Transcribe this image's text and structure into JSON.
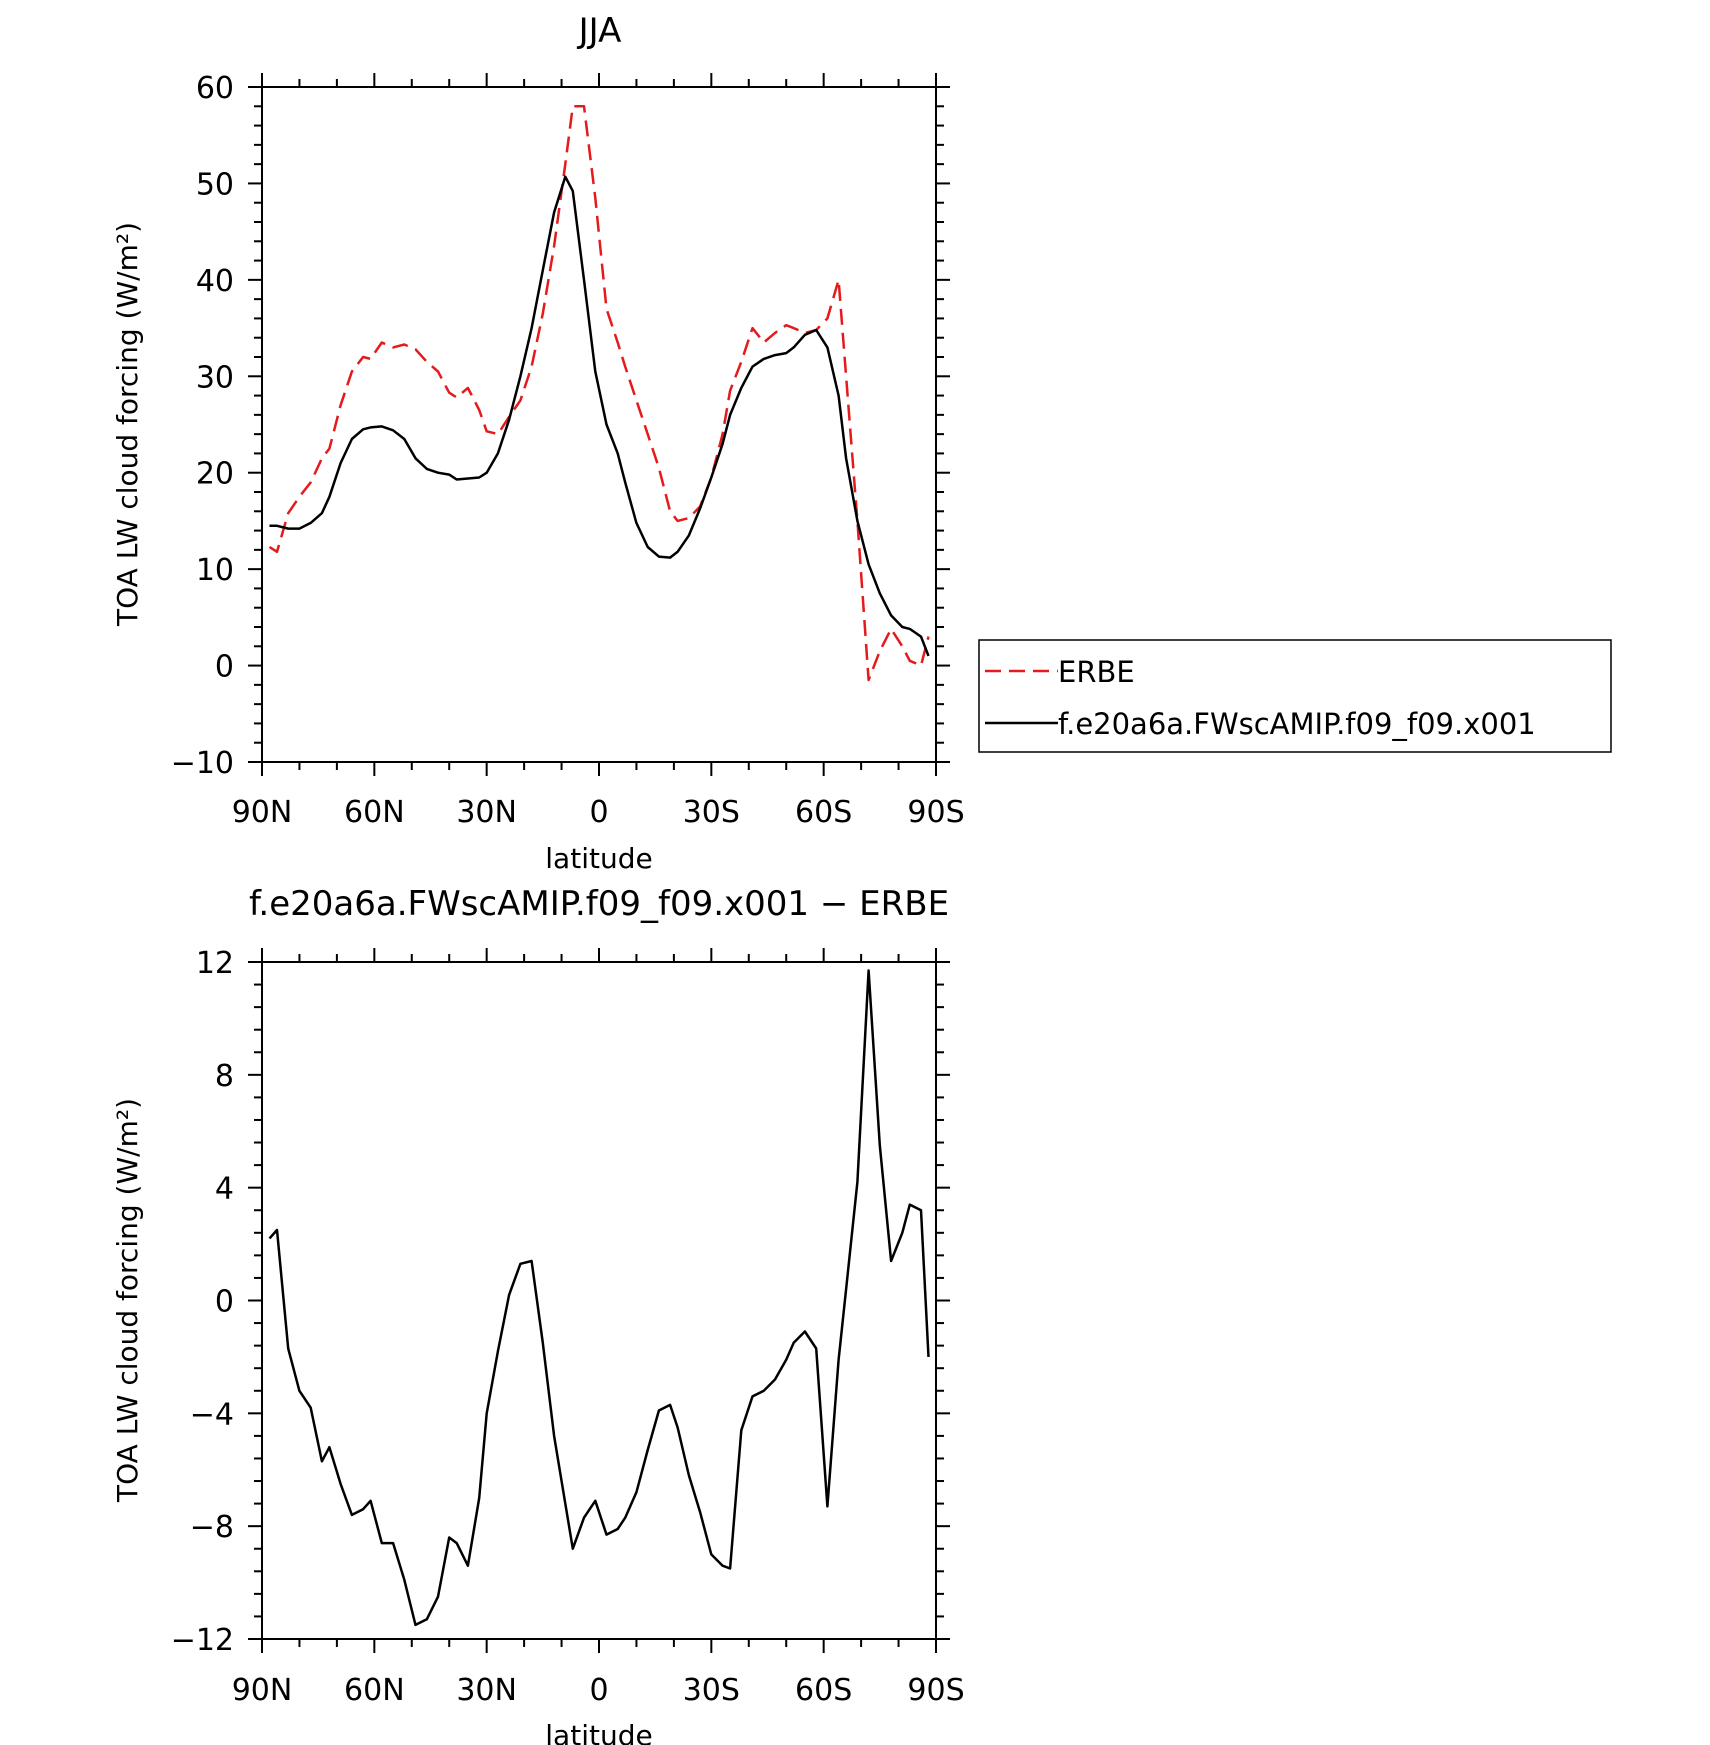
{
  "chart_data": [
    {
      "type": "line",
      "title": "JJA",
      "xlabel": "latitude",
      "ylabel": "TOA LW cloud forcing (W/m²)",
      "xlim": [
        90,
        -90
      ],
      "ylim": [
        -10,
        60
      ],
      "yticks": [
        -10,
        0,
        10,
        20,
        30,
        40,
        50,
        60
      ],
      "xticks": [
        {
          "value": 90,
          "label": "90N"
        },
        {
          "value": 60,
          "label": "60N"
        },
        {
          "value": 30,
          "label": "30N"
        },
        {
          "value": 0,
          "label": "0"
        },
        {
          "value": -30,
          "label": "30S"
        },
        {
          "value": -60,
          "label": "60S"
        },
        {
          "value": -90,
          "label": "90S"
        }
      ],
      "legend_position": "right",
      "series": [
        {
          "name": "ERBE",
          "color": "#e41a1c",
          "style": "dashed",
          "x": [
            88,
            86,
            83,
            80,
            77,
            74,
            72,
            69,
            66,
            63,
            61,
            58,
            55,
            52,
            49,
            46,
            43,
            40,
            38,
            35,
            32,
            30,
            27,
            24,
            21,
            18,
            15,
            12,
            9,
            7,
            4,
            1,
            -2,
            -5,
            -7,
            -10,
            -13,
            -16,
            -19,
            -21,
            -24,
            -27,
            -30,
            -33,
            -35,
            -38,
            -41,
            -44,
            -47,
            -50,
            -52,
            -55,
            -58,
            -61,
            -64,
            -66,
            -69,
            -72,
            -75,
            -78,
            -81,
            -83,
            -86,
            -88
          ],
          "y": [
            12.3,
            11.8,
            15.8,
            17.5,
            19.0,
            21.5,
            22.5,
            27.0,
            30.5,
            32.0,
            31.8,
            33.5,
            33.0,
            33.3,
            32.8,
            31.5,
            30.5,
            28.3,
            27.8,
            28.8,
            26.5,
            24.3,
            24.0,
            25.8,
            27.5,
            31.0,
            36.5,
            43.5,
            52.0,
            58.0,
            58.0,
            48.5,
            37.0,
            33.5,
            31.0,
            27.5,
            24.0,
            20.5,
            16.0,
            15.0,
            15.3,
            16.5,
            19.5,
            24.0,
            28.5,
            31.5,
            35.0,
            33.5,
            34.5,
            35.3,
            35.0,
            34.5,
            34.8,
            36.0,
            40.0,
            30.0,
            15.0,
            -1.5,
            1.5,
            3.8,
            2.0,
            0.5,
            0.0,
            3.0
          ]
        },
        {
          "name": "f.e20a6a.FWscAMIP.f09_f09.x001",
          "color": "#000000",
          "style": "solid",
          "x": [
            88,
            86,
            83,
            80,
            77,
            74,
            72,
            69,
            66,
            63,
            61,
            58,
            55,
            52,
            49,
            46,
            43,
            40,
            38,
            35,
            32,
            30,
            27,
            24,
            21,
            18,
            15,
            12,
            9,
            7,
            4,
            1,
            -2,
            -5,
            -7,
            -10,
            -13,
            -16,
            -19,
            -21,
            -24,
            -27,
            -30,
            -33,
            -35,
            -38,
            -41,
            -44,
            -47,
            -50,
            -52,
            -55,
            -58,
            -61,
            -64,
            -66,
            -69,
            -72,
            -75,
            -78,
            -81,
            -83,
            -86,
            -88
          ],
          "y": [
            14.5,
            14.5,
            14.2,
            14.2,
            14.8,
            15.8,
            17.5,
            21.0,
            23.5,
            24.5,
            24.7,
            24.8,
            24.4,
            23.5,
            21.5,
            20.4,
            20.0,
            19.8,
            19.3,
            19.4,
            19.5,
            20.0,
            22.0,
            25.5,
            30.0,
            35.0,
            41.0,
            47.0,
            50.7,
            49.2,
            40.0,
            30.5,
            25.0,
            22.0,
            19.0,
            14.8,
            12.3,
            11.3,
            11.2,
            11.8,
            13.5,
            16.3,
            19.5,
            23.0,
            26.0,
            28.8,
            31.0,
            31.8,
            32.2,
            32.4,
            33.0,
            34.3,
            34.8,
            33.0,
            28.0,
            21.5,
            15.0,
            10.5,
            7.5,
            5.2,
            4.0,
            3.8,
            3.0,
            1.0
          ]
        }
      ]
    },
    {
      "type": "line",
      "title": "f.e20a6a.FWscAMIP.f09_f09.x001 − ERBE",
      "xlabel": "latitude",
      "ylabel": "TOA LW cloud forcing (W/m²)",
      "xlim": [
        90,
        -90
      ],
      "ylim": [
        -12,
        12
      ],
      "yticks": [
        -12,
        -8,
        -4,
        0,
        4,
        8,
        12
      ],
      "xticks": [
        {
          "value": 90,
          "label": "90N"
        },
        {
          "value": 60,
          "label": "60N"
        },
        {
          "value": 30,
          "label": "30N"
        },
        {
          "value": 0,
          "label": "0"
        },
        {
          "value": -30,
          "label": "30S"
        },
        {
          "value": -60,
          "label": "60S"
        },
        {
          "value": -90,
          "label": "90S"
        }
      ],
      "series": [
        {
          "color": "#000000",
          "style": "solid",
          "x": [
            88,
            86,
            83,
            80,
            77,
            74,
            72,
            69,
            66,
            63,
            61,
            58,
            55,
            52,
            49,
            46,
            43,
            40,
            38,
            35,
            32,
            30,
            27,
            24,
            21,
            18,
            15,
            12,
            9,
            7,
            4,
            1,
            -2,
            -5,
            -7,
            -10,
            -13,
            -16,
            -19,
            -21,
            -24,
            -27,
            -30,
            -33,
            -35,
            -38,
            -41,
            -44,
            -47,
            -50,
            -52,
            -55,
            -58,
            -61,
            -64,
            -66,
            -69,
            -72,
            -75,
            -78,
            -81,
            -83,
            -86,
            -88
          ],
          "y": [
            2.2,
            2.5,
            -1.7,
            -3.2,
            -3.8,
            -5.7,
            -5.2,
            -6.5,
            -7.6,
            -7.4,
            -7.1,
            -8.6,
            -8.6,
            -9.9,
            -11.5,
            -11.3,
            -10.5,
            -8.4,
            -8.6,
            -9.4,
            -7.0,
            -4.0,
            -1.8,
            0.2,
            1.3,
            1.4,
            -1.5,
            -4.8,
            -7.2,
            -8.8,
            -7.7,
            -7.1,
            -8.3,
            -8.1,
            -7.7,
            -6.8,
            -5.3,
            -3.9,
            -3.7,
            -4.5,
            -6.2,
            -7.5,
            -9.0,
            -9.4,
            -9.5,
            -4.6,
            -3.4,
            -3.2,
            -2.8,
            -2.1,
            -1.5,
            -1.1,
            -1.7,
            -7.3,
            -2.1,
            0.4,
            4.2,
            11.7,
            5.5,
            1.4,
            2.4,
            3.4,
            3.2,
            -2.0
          ]
        }
      ]
    }
  ]
}
